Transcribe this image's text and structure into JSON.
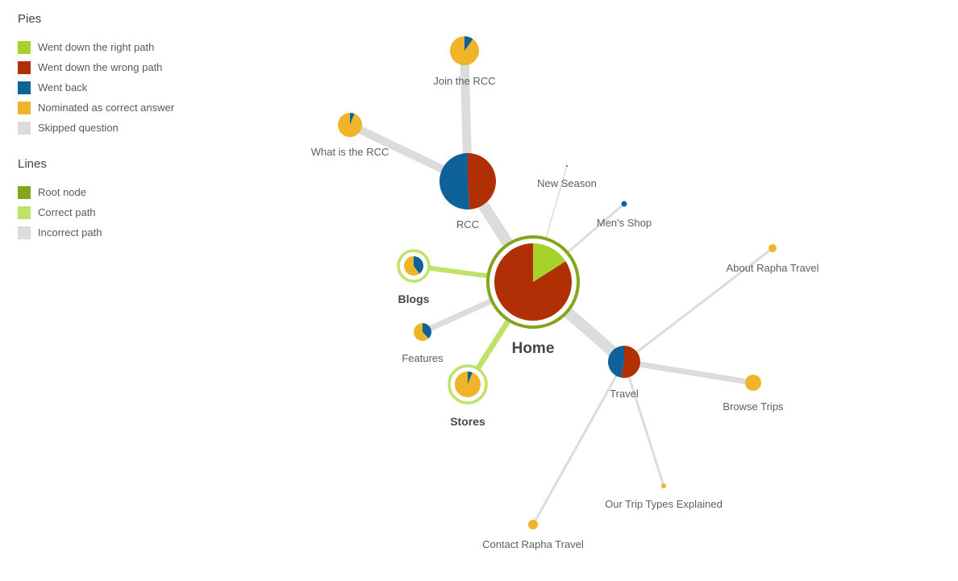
{
  "legend": {
    "pies_title": "Pies",
    "pies": [
      {
        "label": "Went down the right path",
        "color": "#a6d22a"
      },
      {
        "label": "Went down the wrong path",
        "color": "#b02f05"
      },
      {
        "label": "Went back",
        "color": "#0f6199"
      },
      {
        "label": "Nominated as correct answer",
        "color": "#f0b429"
      },
      {
        "label": "Skipped question",
        "color": "#dcdcdc"
      }
    ],
    "lines_title": "Lines",
    "lines": [
      {
        "label": "Root node",
        "color": "#84a51e"
      },
      {
        "label": "Correct path",
        "color": "#bfe36a"
      },
      {
        "label": "Incorrect path",
        "color": "#dcdcdc"
      }
    ]
  },
  "nodes": [
    {
      "id": "home",
      "label": "Home",
      "root": true,
      "slices": {
        "right": 0.16,
        "wrong": 0.84
      }
    },
    {
      "id": "rcc",
      "label": "RCC",
      "slices": {
        "wrong": 0.49,
        "back": 0.51
      }
    },
    {
      "id": "join_rcc",
      "label": "Join the RCC",
      "slices": {
        "back": 0.1,
        "nominated": 0.9
      }
    },
    {
      "id": "what_rcc",
      "label": "What is the RCC",
      "slices": {
        "back": 0.06,
        "nominated": 0.94
      }
    },
    {
      "id": "new_season",
      "label": "New Season",
      "slices": {
        "back": 1.0
      }
    },
    {
      "id": "mens_shop",
      "label": "Men's Shop",
      "slices": {
        "back": 1.0
      }
    },
    {
      "id": "blogs",
      "label": "Blogs",
      "correct": true,
      "slices": {
        "back": 0.4,
        "nominated": 0.6
      }
    },
    {
      "id": "features",
      "label": "Features",
      "slices": {
        "back": 0.38,
        "nominated": 0.62
      }
    },
    {
      "id": "stores",
      "label": "Stores",
      "correct": true,
      "slices": {
        "back": 0.06,
        "nominated": 0.94
      }
    },
    {
      "id": "travel",
      "label": "Travel",
      "slices": {
        "wrong": 0.53,
        "back": 0.47
      }
    },
    {
      "id": "about_travel",
      "label": "About Rapha Travel",
      "slices": {
        "nominated": 1.0
      }
    },
    {
      "id": "browse_trips",
      "label": "Browse Trips",
      "slices": {
        "nominated": 1.0
      }
    },
    {
      "id": "trip_types",
      "label": "Our Trip Types Explained",
      "slices": {
        "nominated": 1.0
      }
    },
    {
      "id": "contact_travel",
      "label": "Contact Rapha Travel",
      "slices": {
        "nominated": 1.0
      }
    }
  ],
  "links": [
    {
      "from": "home",
      "to": "rcc",
      "type": "incorrect"
    },
    {
      "from": "rcc",
      "to": "join_rcc",
      "type": "incorrect"
    },
    {
      "from": "rcc",
      "to": "what_rcc",
      "type": "incorrect"
    },
    {
      "from": "home",
      "to": "new_season",
      "type": "incorrect"
    },
    {
      "from": "home",
      "to": "mens_shop",
      "type": "incorrect"
    },
    {
      "from": "home",
      "to": "blogs",
      "type": "correct"
    },
    {
      "from": "home",
      "to": "features",
      "type": "incorrect"
    },
    {
      "from": "home",
      "to": "stores",
      "type": "correct"
    },
    {
      "from": "home",
      "to": "travel",
      "type": "incorrect"
    },
    {
      "from": "travel",
      "to": "about_travel",
      "type": "incorrect"
    },
    {
      "from": "travel",
      "to": "browse_trips",
      "type": "incorrect"
    },
    {
      "from": "travel",
      "to": "trip_types",
      "type": "incorrect"
    },
    {
      "from": "travel",
      "to": "contact_travel",
      "type": "incorrect"
    }
  ]
}
